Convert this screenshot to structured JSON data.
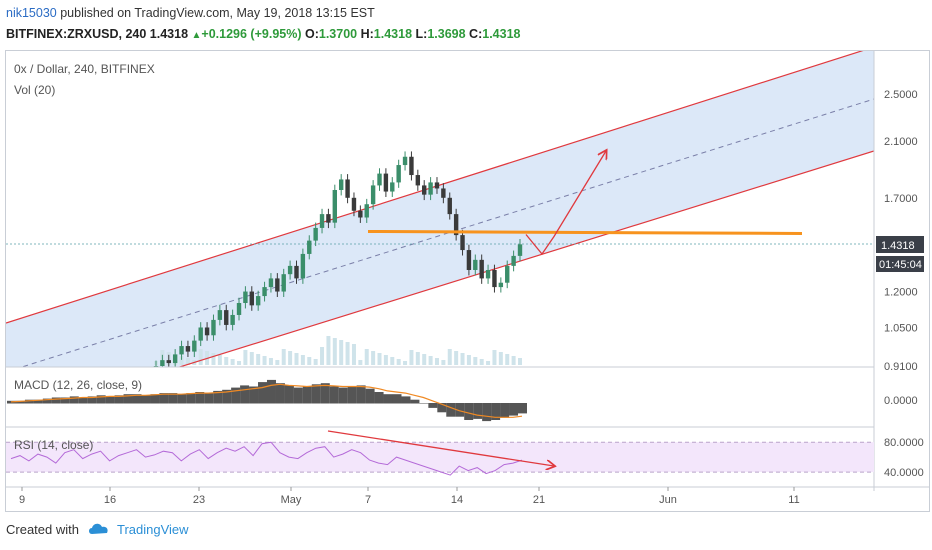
{
  "header": {
    "user": "nik15030",
    "published": "published on TradingView.com, May 19, 2018 13:15 EST",
    "symbol_line": "BITFINEX:ZRXUSD, 240",
    "last": "1.4318",
    "change": "+0.1296 (+9.95%)",
    "open_label": "O:",
    "open": "1.3700",
    "high_label": "H:",
    "high": "1.4318",
    "low_label": "L:",
    "low": "1.3698",
    "close_label": "C:",
    "close": "1.4318"
  },
  "colors": {
    "channel": "#e0393e",
    "channel_fill": "#dce8f8",
    "level": "#f7931e",
    "up": "#3b8e6a",
    "down": "#3a3a3a",
    "macd_line": "#f08a24",
    "rsi_line": "#b46ad8",
    "rsi_fill": "#f3e6fb",
    "price_badge": "#3a3f48",
    "volume": "#cfe3ea"
  },
  "chart_data": {
    "type": "candlestick",
    "title": "0x / Dollar, 240, BITFINEX",
    "volume_label": "Vol (20)",
    "price_ticks": [
      "2.5000",
      "2.1000",
      "1.7000",
      "1.4318",
      "1.2000",
      "1.0500",
      "0.9100"
    ],
    "current_price": "1.4318",
    "countdown": "01:45:04",
    "x_ticks": [
      "9",
      "16",
      "23",
      "May",
      "7",
      "14",
      "21",
      "Jun",
      "11"
    ],
    "horizontal_level": 1.5,
    "closes": [
      0.91,
      0.93,
      0.92,
      0.95,
      0.98,
      0.96,
      1.0,
      1.05,
      1.02,
      1.08,
      1.12,
      1.06,
      1.1,
      1.15,
      1.2,
      1.14,
      1.18,
      1.22,
      1.26,
      1.2,
      1.28,
      1.32,
      1.26,
      1.38,
      1.45,
      1.52,
      1.6,
      1.55,
      1.75,
      1.82,
      1.7,
      1.62,
      1.58,
      1.66,
      1.78,
      1.86,
      1.74,
      1.8,
      1.92,
      1.98,
      1.85,
      1.78,
      1.72,
      1.8,
      1.76,
      1.7,
      1.6,
      1.48,
      1.4,
      1.3,
      1.35,
      1.26,
      1.3,
      1.22,
      1.24,
      1.32,
      1.37,
      1.43
    ],
    "macd": {
      "label": "MACD (12, 26, close, 9)",
      "tick": "0.0000",
      "histogram": [
        0.02,
        0.02,
        0.03,
        0.03,
        0.04,
        0.05,
        0.05,
        0.06,
        0.05,
        0.06,
        0.07,
        0.06,
        0.07,
        0.08,
        0.08,
        0.07,
        0.08,
        0.09,
        0.09,
        0.08,
        0.09,
        0.1,
        0.09,
        0.11,
        0.12,
        0.14,
        0.16,
        0.15,
        0.19,
        0.21,
        0.18,
        0.16,
        0.14,
        0.15,
        0.17,
        0.18,
        0.15,
        0.14,
        0.15,
        0.16,
        0.13,
        0.1,
        0.08,
        0.08,
        0.06,
        0.03,
        0.0,
        -0.04,
        -0.08,
        -0.12,
        -0.12,
        -0.15,
        -0.14,
        -0.16,
        -0.15,
        -0.13,
        -0.11,
        -0.09
      ],
      "signal": [
        0.01,
        0.015,
        0.02,
        0.025,
        0.03,
        0.035,
        0.04,
        0.045,
        0.05,
        0.05,
        0.055,
        0.06,
        0.06,
        0.065,
        0.07,
        0.07,
        0.075,
        0.08,
        0.08,
        0.08,
        0.085,
        0.09,
        0.09,
        0.095,
        0.1,
        0.11,
        0.12,
        0.13,
        0.14,
        0.16,
        0.17,
        0.16,
        0.155,
        0.15,
        0.155,
        0.16,
        0.155,
        0.15,
        0.15,
        0.15,
        0.145,
        0.13,
        0.11,
        0.1,
        0.09,
        0.07,
        0.05,
        0.02,
        -0.01,
        -0.04,
        -0.07,
        -0.09,
        -0.11,
        -0.12,
        -0.13,
        -0.13,
        -0.13,
        -0.12
      ]
    },
    "rsi": {
      "label": "RSI (14, close)",
      "ticks": [
        "80.0000",
        "40.0000"
      ],
      "values": [
        58,
        62,
        55,
        64,
        60,
        52,
        66,
        70,
        58,
        64,
        68,
        55,
        62,
        66,
        70,
        60,
        63,
        68,
        66,
        55,
        64,
        70,
        58,
        66,
        72,
        68,
        74,
        62,
        78,
        80,
        66,
        60,
        58,
        66,
        72,
        74,
        60,
        64,
        70,
        66,
        56,
        52,
        50,
        60,
        56,
        52,
        48,
        44,
        40,
        36,
        48,
        42,
        46,
        38,
        42,
        50,
        52,
        56
      ]
    }
  },
  "footer": {
    "created_with": "Created with",
    "brand": "TradingView"
  }
}
